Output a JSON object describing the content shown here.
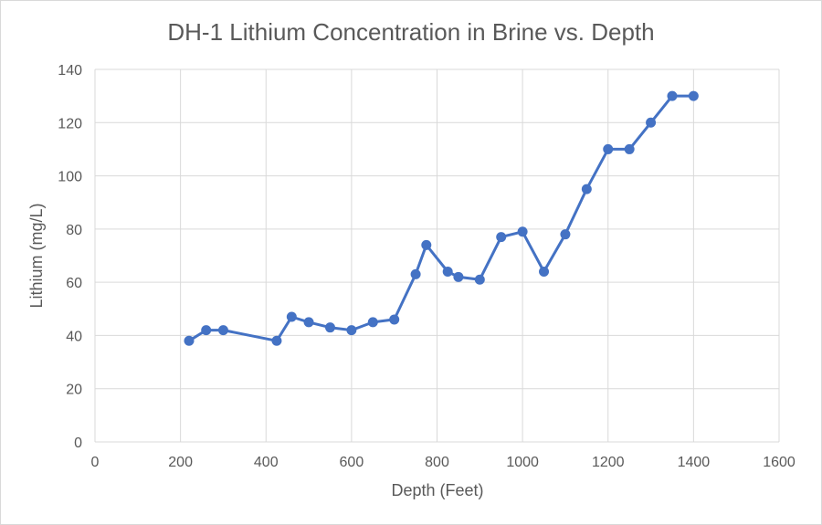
{
  "chart_data": {
    "type": "scatter",
    "title": "DH-1 Lithium Concentration in Brine vs. Depth",
    "xlabel": "Depth (Feet)",
    "ylabel": "Lithium (mg/L)",
    "xlim": [
      0,
      1600
    ],
    "ylim": [
      0,
      140
    ],
    "x_ticks": [
      0,
      200,
      400,
      600,
      800,
      1000,
      1200,
      1400,
      1600
    ],
    "y_ticks": [
      0,
      20,
      40,
      60,
      80,
      100,
      120,
      140
    ],
    "grid": true,
    "legend": "none",
    "series": [
      {
        "color": "#4472c4",
        "points": [
          [
            220,
            38
          ],
          [
            260,
            42
          ],
          [
            300,
            42
          ],
          [
            425,
            38
          ],
          [
            460,
            47
          ],
          [
            500,
            45
          ],
          [
            550,
            43
          ],
          [
            600,
            42
          ],
          [
            650,
            45
          ],
          [
            700,
            46
          ],
          [
            750,
            63
          ],
          [
            775,
            74
          ],
          [
            825,
            64
          ],
          [
            850,
            62
          ],
          [
            900,
            61
          ],
          [
            950,
            77
          ],
          [
            1000,
            79
          ],
          [
            1050,
            64
          ],
          [
            1100,
            78
          ],
          [
            1150,
            95
          ],
          [
            1200,
            110
          ],
          [
            1250,
            110
          ],
          [
            1300,
            120
          ],
          [
            1350,
            130
          ],
          [
            1400,
            130
          ]
        ]
      }
    ]
  }
}
